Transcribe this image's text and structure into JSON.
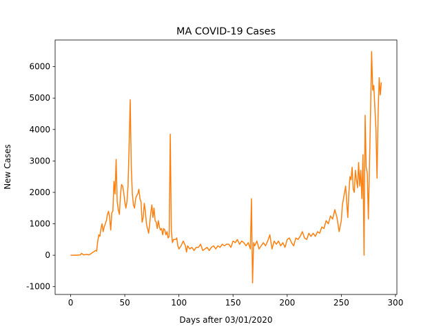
{
  "chart_data": {
    "type": "line",
    "title": "MA COVID-19 Cases",
    "x_label": "Days after 03/01/2020",
    "y_label": "New Cases",
    "color": "#ff7f0e",
    "x": [
      0,
      5,
      9,
      10,
      12,
      15,
      17,
      20,
      23,
      24,
      25,
      26,
      27,
      28,
      29,
      30,
      31,
      33,
      34,
      35,
      36,
      37,
      38,
      39,
      40,
      41,
      42,
      43,
      44,
      45,
      46,
      47,
      48,
      49,
      50,
      51,
      52,
      53,
      54,
      55,
      56,
      57,
      58,
      59,
      60,
      61,
      62,
      63,
      64,
      65,
      66,
      67,
      68,
      69,
      70,
      71,
      72,
      73,
      74,
      75,
      76,
      77,
      78,
      79,
      80,
      81,
      82,
      83,
      84,
      85,
      86,
      87,
      88,
      89,
      90,
      91,
      92,
      93,
      94,
      95,
      96,
      97,
      98,
      99,
      100,
      102,
      104,
      106,
      107,
      108,
      110,
      112,
      114,
      116,
      118,
      120,
      122,
      124,
      126,
      128,
      130,
      132,
      134,
      136,
      138,
      140,
      142,
      144,
      146,
      148,
      150,
      152,
      154,
      156,
      158,
      160,
      162,
      164,
      166,
      167,
      168,
      169,
      170,
      172,
      174,
      176,
      178,
      180,
      182,
      184,
      186,
      188,
      190,
      192,
      194,
      196,
      198,
      200,
      202,
      204,
      206,
      208,
      210,
      212,
      214,
      216,
      218,
      220,
      222,
      224,
      226,
      228,
      230,
      232,
      234,
      236,
      238,
      240,
      242,
      244,
      246,
      248,
      250,
      251,
      253,
      254,
      255,
      256,
      257,
      258,
      259,
      260,
      261,
      262,
      263,
      264,
      265,
      266,
      267,
      268,
      269,
      270,
      271,
      272,
      273,
      274,
      275,
      277,
      278,
      279,
      280,
      282,
      283,
      284,
      285,
      286,
      287
    ],
    "values": [
      0,
      0,
      10,
      60,
      10,
      30,
      10,
      80,
      150,
      130,
      450,
      650,
      600,
      850,
      1000,
      750,
      900,
      1100,
      1300,
      1400,
      1200,
      800,
      1350,
      1400,
      2350,
      1950,
      3050,
      1700,
      1450,
      1300,
      1900,
      2250,
      2200,
      2000,
      1700,
      1500,
      1700,
      2200,
      3500,
      4950,
      2800,
      1950,
      1600,
      1500,
      1800,
      1900,
      1950,
      2100,
      1800,
      1700,
      1050,
      1200,
      1650,
      1400,
      1000,
      850,
      700,
      1000,
      1350,
      1600,
      1200,
      1500,
      1100,
      1050,
      850,
      1100,
      900,
      800,
      850,
      650,
      850,
      800,
      650,
      750,
      550,
      600,
      3850,
      800,
      400,
      500,
      500,
      500,
      550,
      300,
      200,
      300,
      450,
      300,
      100,
      300,
      200,
      250,
      150,
      250,
      250,
      350,
      150,
      200,
      250,
      150,
      250,
      300,
      200,
      300,
      250,
      350,
      300,
      350,
      350,
      250,
      450,
      400,
      500,
      350,
      450,
      400,
      300,
      400,
      200,
      1800,
      -880,
      400,
      300,
      450,
      200,
      300,
      400,
      300,
      450,
      650,
      200,
      450,
      350,
      450,
      300,
      400,
      250,
      500,
      550,
      400,
      300,
      550,
      500,
      600,
      750,
      550,
      500,
      700,
      600,
      700,
      600,
      750,
      700,
      900,
      850,
      1100,
      1000,
      1250,
      1150,
      1450,
      1200,
      750,
      1100,
      1600,
      2000,
      2200,
      1700,
      1200,
      2000,
      2500,
      2400,
      2800,
      2100,
      2000,
      2700,
      2400,
      2150,
      2950,
      2200,
      2700,
      1800,
      3200,
      0,
      4450,
      2800,
      2600,
      1150,
      4500,
      6480,
      5250,
      5400,
      4000,
      2450,
      4500,
      5650,
      5100,
      5500
    ],
    "xlim": [
      -14.35,
      301.35
    ],
    "ylim": [
      -1248,
      6848
    ],
    "xticks": [
      0,
      50,
      100,
      150,
      200,
      250,
      300
    ],
    "yticks": [
      -1000,
      0,
      1000,
      2000,
      3000,
      4000,
      5000,
      6000
    ]
  }
}
